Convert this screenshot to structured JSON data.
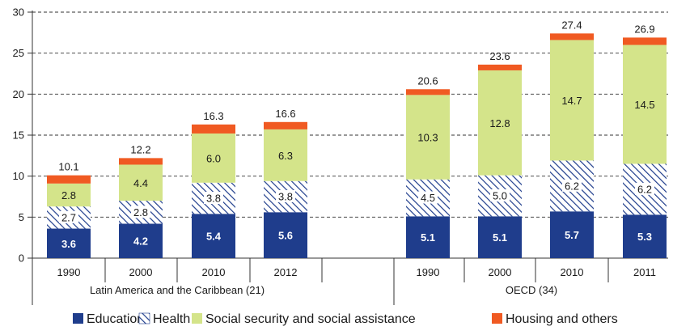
{
  "chart_data": {
    "type": "bar",
    "stacked": true,
    "groups": [
      {
        "name": "Latin America and the Caribbean (21)",
        "categories": [
          "1990",
          "2000",
          "2010",
          "2012"
        ],
        "totals": [
          "10.1",
          "12.2",
          "16.3",
          "16.6"
        ],
        "series": [
          {
            "name": "Education",
            "values": [
              3.6,
              4.2,
              5.4,
              5.6
            ],
            "labels": [
              "3.6",
              "4.2",
              "5.4",
              "5.6"
            ]
          },
          {
            "name": "Health",
            "values": [
              2.7,
              2.8,
              3.8,
              3.8
            ],
            "labels": [
              "2.7",
              "2.8",
              "3.8",
              "3.8"
            ]
          },
          {
            "name": "Social security and social assistance",
            "values": [
              2.8,
              4.4,
              6.0,
              6.3
            ],
            "labels": [
              "2.8",
              "4.4",
              "6.0",
              "6.3"
            ]
          },
          {
            "name": "Housing and others",
            "values": [
              1.0,
              0.8,
              1.1,
              0.9
            ],
            "labels": [
              "",
              "",
              "",
              ""
            ]
          }
        ]
      },
      {
        "name": "OECD (34)",
        "categories": [
          "1990",
          "2000",
          "2010",
          "2011"
        ],
        "totals": [
          "20.6",
          "23.6",
          "27.4",
          "26.9"
        ],
        "series": [
          {
            "name": "Education",
            "values": [
              5.1,
              5.1,
              5.7,
              5.3
            ],
            "labels": [
              "5.1",
              "5.1",
              "5.7",
              "5.3"
            ]
          },
          {
            "name": "Health",
            "values": [
              4.5,
              5.0,
              6.2,
              6.2
            ],
            "labels": [
              "4.5",
              "5.0",
              "6.2",
              "6.2"
            ]
          },
          {
            "name": "Social security and social assistance",
            "values": [
              10.3,
              12.8,
              14.7,
              14.5
            ],
            "labels": [
              "10.3",
              "12.8",
              "14.7",
              "14.5"
            ]
          },
          {
            "name": "Housing and others",
            "values": [
              0.7,
              0.7,
              0.8,
              0.9
            ],
            "labels": [
              "",
              "",
              "",
              ""
            ]
          }
        ]
      }
    ],
    "ylim": [
      0,
      30
    ],
    "yticks": [
      "0",
      "5",
      "10",
      "15",
      "20",
      "25",
      "30"
    ],
    "grid": true,
    "legend_position": "bottom",
    "legend": [
      {
        "name": "Education",
        "color": "#1f3d8c",
        "pattern": "solid"
      },
      {
        "name": "Health",
        "color": "#1f3d8c",
        "pattern": "hatch"
      },
      {
        "name": "Social security and social assistance",
        "color": "#d4e48a",
        "pattern": "solid"
      },
      {
        "name": "Housing and others",
        "color": "#f05a22",
        "pattern": "solid"
      }
    ]
  }
}
